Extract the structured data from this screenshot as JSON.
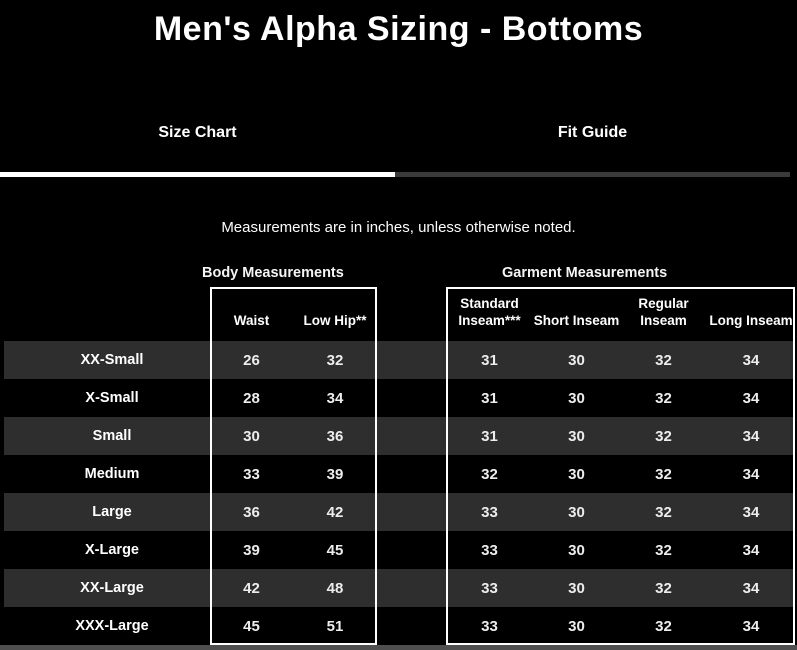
{
  "title": "Men's Alpha Sizing - Bottoms",
  "tabs": [
    {
      "label": "Size Chart",
      "active": true
    },
    {
      "label": "Fit Guide",
      "active": false
    }
  ],
  "note": "Measurements are in inches, unless otherwise noted.",
  "sections": {
    "body": "Body Measurements",
    "garment": "Garment Measurements"
  },
  "columns": {
    "body": [
      "Waist",
      "Low Hip**"
    ],
    "garment": [
      "Standard Inseam***",
      "Short Inseam",
      "Regular Inseam",
      "Long Inseam"
    ]
  },
  "table": {
    "rows": [
      {
        "size": "XX-Small",
        "values": [
          "26",
          "32",
          "31",
          "30",
          "32",
          "34"
        ]
      },
      {
        "size": "X-Small",
        "values": [
          "28",
          "34",
          "31",
          "30",
          "32",
          "34"
        ]
      },
      {
        "size": "Small",
        "values": [
          "30",
          "36",
          "31",
          "30",
          "32",
          "34"
        ]
      },
      {
        "size": "Medium",
        "values": [
          "33",
          "39",
          "32",
          "30",
          "32",
          "34"
        ]
      },
      {
        "size": "Large",
        "values": [
          "36",
          "42",
          "33",
          "30",
          "32",
          "34"
        ]
      },
      {
        "size": "X-Large",
        "values": [
          "39",
          "45",
          "33",
          "30",
          "32",
          "34"
        ]
      },
      {
        "size": "XX-Large",
        "values": [
          "42",
          "48",
          "33",
          "30",
          "32",
          "34"
        ]
      },
      {
        "size": "XXX-Large",
        "values": [
          "45",
          "51",
          "33",
          "30",
          "32",
          "34"
        ]
      }
    ]
  },
  "colors": {
    "background": "#000000",
    "row_stripe": "#2e2e2e",
    "active_tab_underline": "#ffffff",
    "inactive_tab_underline": "#3a3a3a",
    "box_border": "#ffffff",
    "bottom_band": "#4f4f4f",
    "text": "#ffffff"
  }
}
